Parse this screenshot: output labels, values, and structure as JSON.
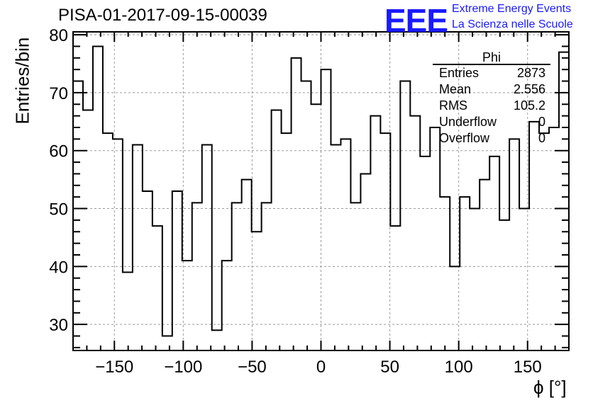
{
  "header": {
    "run_title": "PISA-01-2017-09-15-00039",
    "logo_text": "EEE",
    "logo_line1": "Extreme Energy Events",
    "logo_line2": "La Scienza nelle Scuole"
  },
  "stats_box": {
    "title": "Phi",
    "rows": [
      {
        "label": "Entries",
        "value": "2873"
      },
      {
        "label": "Mean",
        "value": "2.556"
      },
      {
        "label": "RMS",
        "value": "105.2"
      },
      {
        "label": "Underflow",
        "value": "0"
      },
      {
        "label": "Overflow",
        "value": "0"
      }
    ]
  },
  "chart_data": {
    "type": "bar",
    "style": "histogram-step",
    "xlabel": "ϕ [°]",
    "ylabel": "Entries/bin",
    "xlim": [
      -180,
      180
    ],
    "ylim": [
      25.5,
      80.5
    ],
    "bin_width": 7.2,
    "xticks": [
      -150,
      -100,
      -50,
      0,
      50,
      100,
      150
    ],
    "yticks": [
      30,
      40,
      50,
      60,
      70,
      80
    ],
    "grid": true,
    "values": [
      72,
      67,
      78,
      63,
      62,
      39,
      61,
      53,
      47,
      28,
      53,
      41,
      51,
      61,
      29,
      41,
      51,
      55,
      46,
      51,
      67,
      63,
      76,
      72,
      68,
      74,
      61,
      62,
      51,
      56,
      66,
      63,
      47,
      72,
      66,
      59,
      64,
      52,
      40,
      52,
      50,
      55,
      59,
      48,
      62,
      50,
      65,
      63,
      64,
      77
    ]
  },
  "colors": {
    "line": "#000000",
    "grid": "#999999",
    "logo": "#1a1aff"
  }
}
